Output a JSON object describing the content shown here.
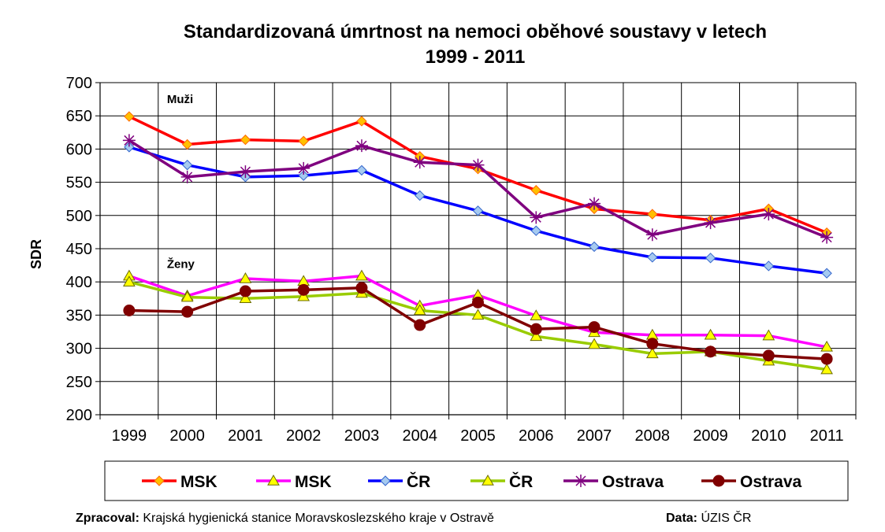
{
  "chart_data": {
    "type": "line",
    "title_line1": "Standardizovaná úmrtnost na nemoci oběhové soustavy v letech",
    "title_line2": "1999 - 2011",
    "ylabel": "SDR",
    "xlabel": "",
    "ylim": [
      200,
      700
    ],
    "yticks": [
      "200",
      "250",
      "300",
      "350",
      "400",
      "450",
      "500",
      "550",
      "600",
      "650",
      "700"
    ],
    "categories": [
      "1999",
      "2000",
      "2001",
      "2002",
      "2003",
      "2004",
      "2005",
      "2006",
      "2007",
      "2008",
      "2009",
      "2010",
      "2011"
    ],
    "grid": true,
    "legend_position": "bottom",
    "annotations": [
      {
        "text": "Muži",
        "x": "1999",
        "y": 669
      },
      {
        "text": "Ženy",
        "x": "1999",
        "y": 421
      }
    ],
    "series": [
      {
        "name": "MSK",
        "color": "#ff0000",
        "marker": "diamond",
        "marker_fill": "#ffc000",
        "marker_stroke": "#ff6600",
        "values": [
          649,
          607,
          614,
          612,
          642,
          589,
          570,
          538,
          510,
          502,
          493,
          510,
          474
        ]
      },
      {
        "name": "MSK",
        "color": "#ff00ff",
        "marker": "triangle",
        "marker_fill": "#ffff00",
        "marker_stroke": "#6b6b00",
        "values": [
          409,
          379,
          405,
          401,
          409,
          364,
          380,
          349,
          324,
          320,
          320,
          319,
          302
        ]
      },
      {
        "name": "ČR",
        "color": "#0000ff",
        "marker": "diamond",
        "marker_fill": "#a6caf0",
        "marker_stroke": "#3366cc",
        "values": [
          603,
          576,
          558,
          560,
          568,
          530,
          507,
          477,
          453,
          437,
          436,
          424,
          413
        ]
      },
      {
        "name": "ČR",
        "color": "#99cc00",
        "marker": "triangle",
        "marker_fill": "#ffff00",
        "marker_stroke": "#6b6b00",
        "values": [
          400,
          377,
          375,
          378,
          383,
          357,
          350,
          318,
          306,
          292,
          295,
          281,
          268
        ]
      },
      {
        "name": "Ostrava",
        "color": "#7f007f",
        "marker": "star",
        "marker_fill": "none",
        "marker_stroke": "#7f007f",
        "values": [
          613,
          558,
          566,
          571,
          605,
          580,
          576,
          497,
          518,
          471,
          489,
          502,
          467
        ]
      },
      {
        "name": "Ostrava",
        "color": "#800000",
        "marker": "circle",
        "marker_fill": "#800000",
        "marker_stroke": "#800000",
        "values": [
          357,
          355,
          386,
          388,
          391,
          335,
          369,
          329,
          332,
          307,
          295,
          289,
          284
        ]
      }
    ]
  },
  "footer": {
    "left_label": "Zpracoval:",
    "left_text": " Krajská hygienická stanice Moravskoslezského kraje v Ostravě",
    "right_label": "Data:",
    "right_text": " ÚZIS ČR"
  }
}
